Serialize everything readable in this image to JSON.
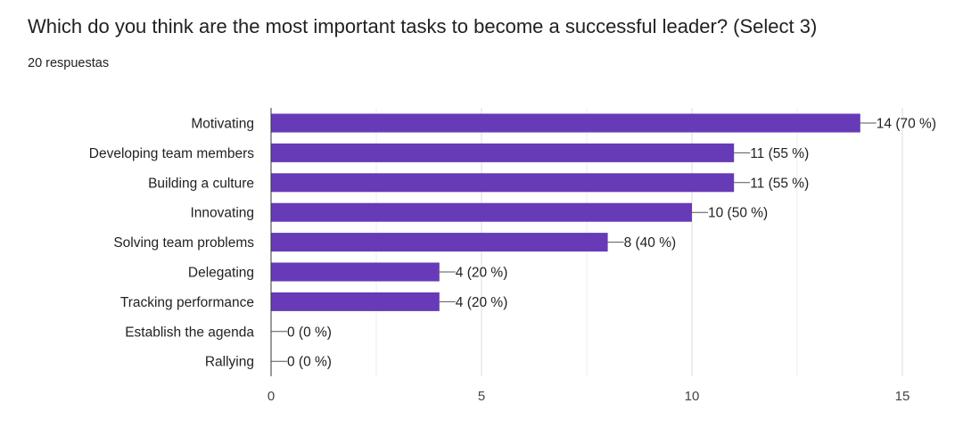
{
  "question": {
    "title": "Which do you think are the most important tasks to become a successful leader? (Select 3)",
    "response_count": "20 respuestas"
  },
  "colors": {
    "bar": "#673ab7",
    "grid": "#e6e6e6",
    "axis": "#333333",
    "leader": "#555555"
  },
  "chart_data": {
    "type": "bar",
    "orientation": "horizontal",
    "categories": [
      "Motivating",
      "Developing team members",
      "Building a culture",
      "Innovating",
      "Solving team problems",
      "Delegating",
      "Tracking performance",
      "Establish the agenda",
      "Rallying"
    ],
    "values": [
      14,
      11,
      11,
      10,
      8,
      4,
      4,
      0,
      0
    ],
    "data_labels": [
      "14 (70 %)",
      "11 (55 %)",
      "11 (55 %)",
      "10 (50 %)",
      "8 (40 %)",
      "4 (20 %)",
      "4 (20 %)",
      "0 (0 %)",
      "0 (0 %)"
    ],
    "xlim": [
      0,
      15
    ],
    "xticks": [
      "0",
      "5",
      "10",
      "15"
    ],
    "grid": true
  }
}
